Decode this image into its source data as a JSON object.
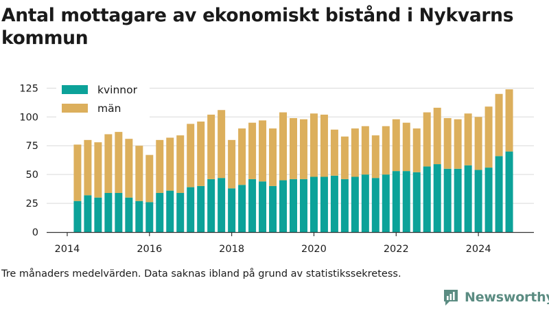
{
  "title": "Antal mottagare av ekonomiskt bistånd i Nykvarns kommun",
  "footnote": "Tre månaders medelvärden. Data saknas ibland på grund av statistikssekretess.",
  "logo_text": "Newsworthy",
  "logo_icon": "newsworthy-logo-icon",
  "colors": {
    "kvinnor": "#0ca299",
    "man": "#dcaf5c",
    "grid": "#d9d9d9",
    "axis": "#333333",
    "logo": "#5b8c82"
  },
  "chart_data": {
    "type": "bar",
    "stacked": true,
    "title": "Antal mottagare av ekonomiskt bistånd i Nykvarns kommun",
    "xlabel": "",
    "ylabel": "",
    "ylim": [
      0,
      130
    ],
    "yticks": [
      0,
      25,
      50,
      75,
      100,
      125
    ],
    "xticks": [
      2014,
      2016,
      2018,
      2020,
      2022,
      2024
    ],
    "xlim": [
      2013.5,
      2025.35
    ],
    "grid": "horizontal",
    "legend": "top-left",
    "x": [
      2014.25,
      2014.5,
      2014.75,
      2015.0,
      2015.25,
      2015.5,
      2015.75,
      2016.0,
      2016.25,
      2016.5,
      2016.75,
      2017.0,
      2017.25,
      2017.5,
      2017.75,
      2018.0,
      2018.25,
      2018.5,
      2018.75,
      2019.0,
      2019.25,
      2019.5,
      2019.75,
      2020.0,
      2020.25,
      2020.5,
      2020.75,
      2021.0,
      2021.25,
      2021.5,
      2021.75,
      2022.0,
      2022.25,
      2022.5,
      2022.75,
      2023.0,
      2023.25,
      2023.5,
      2023.75,
      2024.0,
      2024.25,
      2024.5,
      2024.75
    ],
    "series": [
      {
        "name": "kvinnor",
        "values": [
          27,
          32,
          30,
          34,
          34,
          30,
          27,
          26,
          34,
          36,
          34,
          39,
          40,
          46,
          47,
          38,
          41,
          46,
          44,
          40,
          45,
          46,
          46,
          48,
          48,
          49,
          46,
          48,
          50,
          47,
          50,
          53,
          53,
          52,
          57,
          59,
          55,
          55,
          58,
          54,
          56,
          66,
          70
        ]
      },
      {
        "name": "män",
        "values": [
          49,
          48,
          48,
          51,
          53,
          51,
          48,
          41,
          46,
          46,
          50,
          55,
          56,
          56,
          59,
          42,
          49,
          49,
          53,
          50,
          59,
          53,
          52,
          55,
          54,
          40,
          37,
          42,
          42,
          37,
          42,
          45,
          42,
          38,
          47,
          49,
          44,
          43,
          45,
          46,
          53,
          54,
          54
        ]
      }
    ]
  }
}
